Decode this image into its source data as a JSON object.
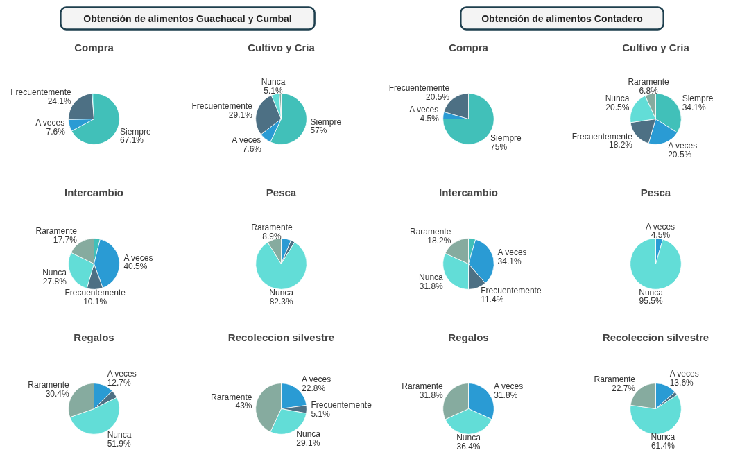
{
  "chart_data": [
    {
      "type": "other",
      "title": "Obtención de alimentos Guachacal y Cumbal"
    },
    {
      "type": "pie",
      "title": "Compra",
      "categories": [
        "Siempre",
        "A veces",
        "Frecuentemente",
        null
      ],
      "values": [
        67.1,
        7.6,
        24.1,
        1.2
      ],
      "colors": [
        "#41c0b9",
        "#2a9bd4",
        "#4d7084",
        "#62ddd7"
      ],
      "value_labels": [
        "67.1%",
        "7.6%",
        "24.1%",
        null
      ]
    },
    {
      "type": "pie",
      "title": "Cultivo y Cria",
      "categories": [
        "Siempre",
        "A veces",
        "Frecuentemente",
        "Nunca",
        null
      ],
      "values": [
        57,
        7.6,
        29.1,
        5.1,
        1.2
      ],
      "colors": [
        "#41c0b9",
        "#2a9bd4",
        "#4d7084",
        "#62ddd7",
        "#86ab9f"
      ],
      "value_labels": [
        "57%",
        "7.6%",
        "29.1%",
        "5.1%",
        null
      ]
    },
    {
      "type": "pie",
      "title": "Intercambio",
      "categories": [
        null,
        "A veces",
        "Frecuentemente",
        "Nunca",
        "Raramente"
      ],
      "values": [
        3.9,
        40.5,
        10.1,
        27.8,
        17.7
      ],
      "colors": [
        "#41c0b9",
        "#2a9bd4",
        "#4d7084",
        "#62ddd7",
        "#86ab9f"
      ],
      "value_labels": [
        null,
        "40.5%",
        "10.1%",
        "27.8%",
        "17.7%"
      ]
    },
    {
      "type": "pie",
      "title": "Pesca",
      "categories": [
        null,
        null,
        "Nunca",
        "Raramente"
      ],
      "values": [
        6.3,
        2.5,
        82.3,
        8.9
      ],
      "colors": [
        "#2a9bd4",
        "#4d7084",
        "#62ddd7",
        "#86ab9f"
      ],
      "value_labels": [
        null,
        null,
        "82.3%",
        "8.9%"
      ]
    },
    {
      "type": "pie",
      "title": "Regalos",
      "categories": [
        "A veces",
        null,
        "Nunca",
        "Raramente"
      ],
      "values": [
        12.7,
        5.0,
        51.9,
        30.4
      ],
      "colors": [
        "#2a9bd4",
        "#4d7084",
        "#62ddd7",
        "#86ab9f"
      ],
      "value_labels": [
        "12.7%",
        null,
        "51.9%",
        "30.4%"
      ]
    },
    {
      "type": "pie",
      "title": "Recoleccion silvestre",
      "categories": [
        "A veces",
        "Frecuentemente",
        "Nunca",
        "Raramente"
      ],
      "values": [
        22.8,
        5.1,
        29.1,
        43
      ],
      "colors": [
        "#2a9bd4",
        "#4d7084",
        "#62ddd7",
        "#86ab9f"
      ],
      "value_labels": [
        "22.8%",
        "5.1%",
        "29.1%",
        "43%"
      ]
    },
    {
      "type": "other",
      "title": "Obtención de alimentos Contadero"
    },
    {
      "type": "pie",
      "title": "Compra",
      "categories": [
        "Siempre",
        "A veces",
        "Frecuentemente"
      ],
      "values": [
        75,
        4.5,
        20.5
      ],
      "colors": [
        "#41c0b9",
        "#2a9bd4",
        "#4d7084"
      ],
      "value_labels": [
        "75%",
        "4.5%",
        "20.5%"
      ]
    },
    {
      "type": "pie",
      "title": "Cultivo y Cria",
      "categories": [
        "Siempre",
        "A veces",
        "Frecuentemente",
        "Nunca",
        "Raramente"
      ],
      "values": [
        34.1,
        20.5,
        18.2,
        20.5,
        6.8
      ],
      "colors": [
        "#41c0b9",
        "#2a9bd4",
        "#4d7084",
        "#62ddd7",
        "#86ab9f"
      ],
      "value_labels": [
        "34.1%",
        "20.5%",
        "18.2%",
        "20.5%",
        "6.8%"
      ]
    },
    {
      "type": "pie",
      "title": "Intercambio",
      "categories": [
        null,
        "A veces",
        "Frecuentemente",
        "Nunca",
        "Raramente"
      ],
      "values": [
        4.5,
        34.1,
        11.4,
        31.8,
        18.2
      ],
      "colors": [
        "#41c0b9",
        "#2a9bd4",
        "#4d7084",
        "#62ddd7",
        "#86ab9f"
      ],
      "value_labels": [
        null,
        "34.1%",
        "11.4%",
        "31.8%",
        "18.2%"
      ]
    },
    {
      "type": "pie",
      "title": "Pesca",
      "categories": [
        "A veces",
        "Nunca"
      ],
      "values": [
        4.5,
        95.5
      ],
      "colors": [
        "#2a9bd4",
        "#62ddd7"
      ],
      "value_labels": [
        "4.5%",
        "95.5%"
      ]
    },
    {
      "type": "pie",
      "title": "Regalos",
      "categories": [
        "A veces",
        "Nunca",
        "Raramente"
      ],
      "values": [
        31.8,
        36.4,
        31.8
      ],
      "colors": [
        "#2a9bd4",
        "#62ddd7",
        "#86ab9f"
      ],
      "value_labels": [
        "31.8%",
        "36.4%",
        "31.8%"
      ]
    },
    {
      "type": "pie",
      "title": "Recoleccion silvestre",
      "categories": [
        "A veces",
        null,
        "Nunca",
        "Raramente"
      ],
      "values": [
        13.6,
        2.3,
        61.4,
        22.7
      ],
      "colors": [
        "#2a9bd4",
        "#4d7084",
        "#62ddd7",
        "#86ab9f"
      ],
      "value_labels": [
        "13.6%",
        null,
        "61.4%",
        "22.7%"
      ]
    }
  ]
}
